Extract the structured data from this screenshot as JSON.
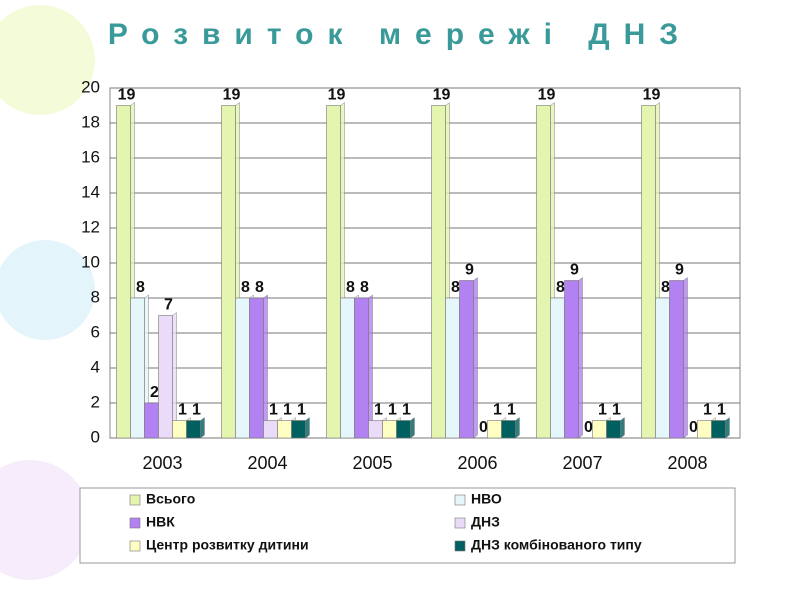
{
  "chart_data": {
    "type": "bar",
    "title": "Розвиток мережі ДНЗ",
    "categories": [
      "2003",
      "2004",
      "2005",
      "2006",
      "2007",
      "2008"
    ],
    "series": [
      {
        "name": "Всього",
        "color": "#e4f5b0",
        "values": [
          19,
          19,
          19,
          19,
          19,
          19
        ]
      },
      {
        "name": "НВО",
        "color": "#e6f7fb",
        "values": [
          8,
          8,
          8,
          8,
          8,
          8
        ]
      },
      {
        "name": "НВК",
        "color": "#b282f2",
        "values": [
          2,
          8,
          8,
          9,
          9,
          9
        ]
      },
      {
        "name": "ДНЗ",
        "color": "#eadcf8",
        "values": [
          7,
          1,
          1,
          0,
          0,
          0
        ]
      },
      {
        "name": "Центр розвитку дитини",
        "color": "#ffffc4",
        "values": [
          1,
          1,
          1,
          1,
          1,
          1
        ]
      },
      {
        "name": "ДНЗ комбінованого типу",
        "color": "#005f5f",
        "values": [
          1,
          1,
          1,
          1,
          1,
          1
        ]
      }
    ],
    "ylim": [
      0,
      20
    ],
    "yticks": [
      0,
      2,
      4,
      6,
      8,
      10,
      12,
      14,
      16,
      18,
      20
    ],
    "grid": true
  }
}
